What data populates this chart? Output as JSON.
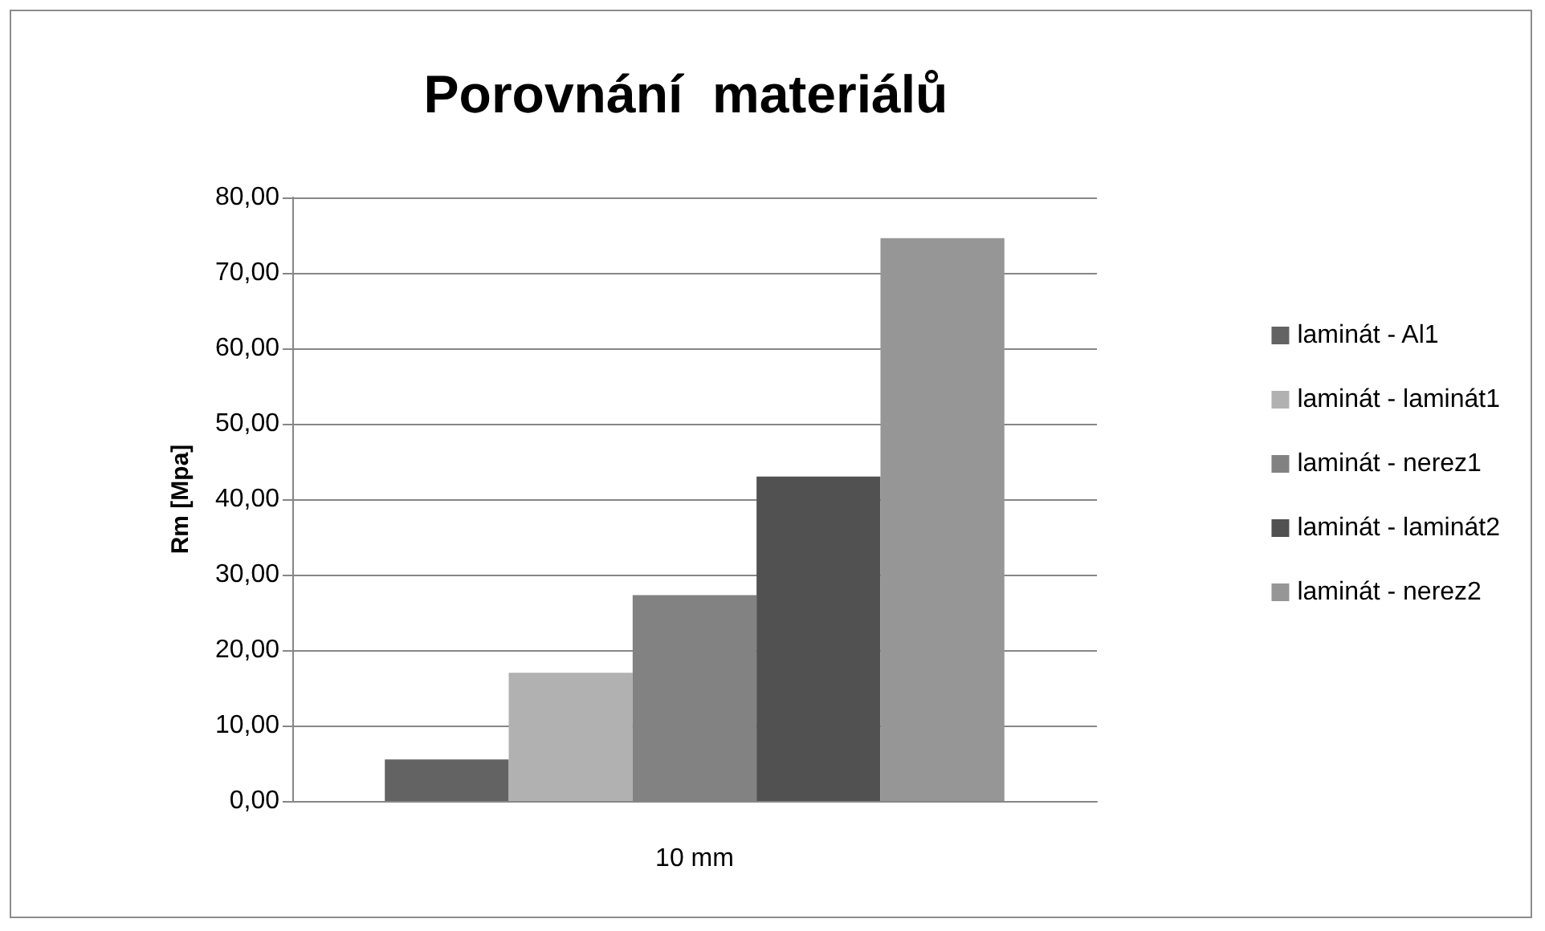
{
  "chart_data": {
    "type": "bar",
    "title": "Porovnání  materiálů",
    "ylabel": "Rm [Mpa]",
    "categories": [
      "10 mm"
    ],
    "series": [
      {
        "name": "laminát - Al1",
        "color": "#636363",
        "values": [
          5.5
        ]
      },
      {
        "name": "laminát - laminát1",
        "color": "#b1b1b1",
        "values": [
          17.0
        ]
      },
      {
        "name": "laminát - nerez1",
        "color": "#828282",
        "values": [
          27.3
        ]
      },
      {
        "name": "laminát - laminát2",
        "color": "#515151",
        "values": [
          43.0
        ]
      },
      {
        "name": "laminát - nerez2",
        "color": "#969696",
        "values": [
          74.6
        ]
      }
    ],
    "ylim": [
      0,
      80
    ],
    "yticks": [
      {
        "value": 0,
        "label": "0,00"
      },
      {
        "value": 10,
        "label": "10,00"
      },
      {
        "value": 20,
        "label": "20,00"
      },
      {
        "value": 30,
        "label": "30,00"
      },
      {
        "value": 40,
        "label": "40,00"
      },
      {
        "value": 50,
        "label": "50,00"
      },
      {
        "value": 60,
        "label": "60,00"
      },
      {
        "value": 70,
        "label": "70,00"
      },
      {
        "value": 80,
        "label": "80,00"
      }
    ],
    "grid": "y",
    "legend": "right"
  }
}
